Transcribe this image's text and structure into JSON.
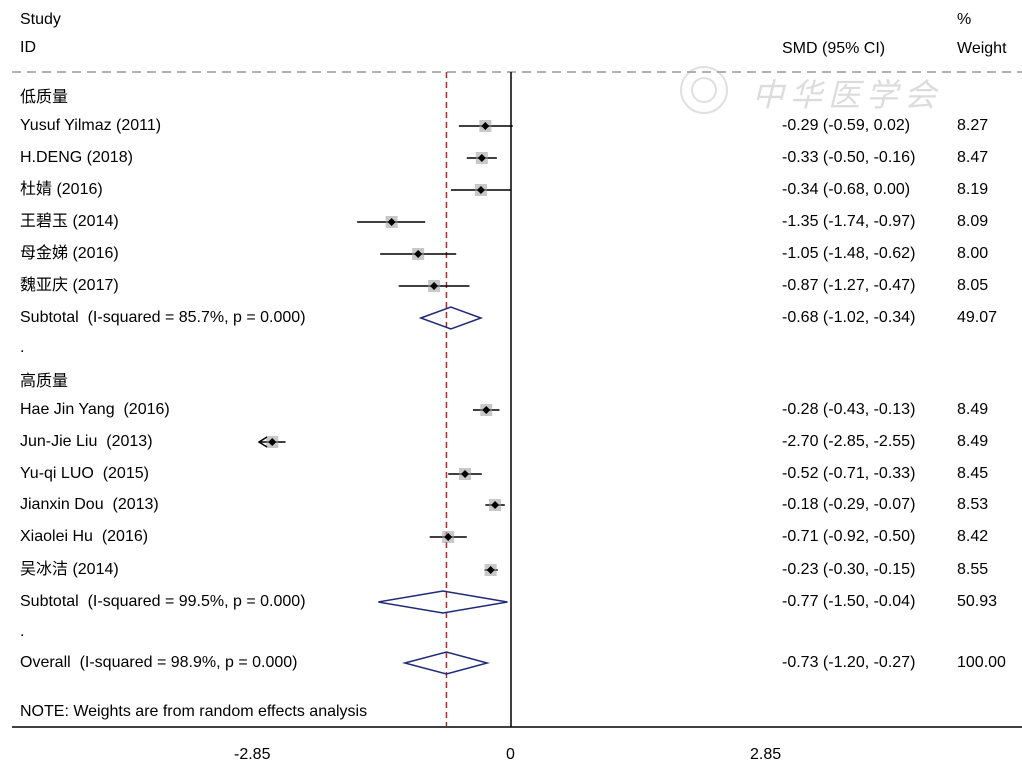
{
  "header": {
    "study_line1": "Study",
    "study_line2": "ID",
    "smd_header": "SMD (95% CI)",
    "pct": "%",
    "weight": "Weight"
  },
  "watermark": {
    "text": "中华医学会"
  },
  "chart_data": {
    "type": "forest",
    "effect_measure": "SMD",
    "xlim": [
      -2.85,
      2.85
    ],
    "x_ticks": [
      "-2.85",
      "0",
      "2.85"
    ],
    "null_line": 0,
    "overall_line": -0.73,
    "rows": [
      {
        "kind": "group",
        "label": "低质量"
      },
      {
        "kind": "study",
        "label": "Yusuf Yilmaz (2011)",
        "est": -0.29,
        "lo": -0.59,
        "hi": 0.02,
        "ci_text": "-0.29 (-0.59, 0.02)",
        "weight": "8.27"
      },
      {
        "kind": "study",
        "label": "H.DENG (2018)",
        "est": -0.33,
        "lo": -0.5,
        "hi": -0.16,
        "ci_text": "-0.33 (-0.50, -0.16)",
        "weight": "8.47"
      },
      {
        "kind": "study",
        "label": "杜婧 (2016)",
        "est": -0.34,
        "lo": -0.68,
        "hi": 0.0,
        "ci_text": "-0.34 (-0.68, 0.00)",
        "weight": "8.19"
      },
      {
        "kind": "study",
        "label": "王碧玉 (2014)",
        "est": -1.35,
        "lo": -1.74,
        "hi": -0.97,
        "ci_text": "-1.35 (-1.74, -0.97)",
        "weight": "8.09"
      },
      {
        "kind": "study",
        "label": "母金娣 (2016)",
        "est": -1.05,
        "lo": -1.48,
        "hi": -0.62,
        "ci_text": "-1.05 (-1.48, -0.62)",
        "weight": "8.00"
      },
      {
        "kind": "study",
        "label": "魏亚庆 (2017)",
        "est": -0.87,
        "lo": -1.27,
        "hi": -0.47,
        "ci_text": "-0.87 (-1.27, -0.47)",
        "weight": "8.05"
      },
      {
        "kind": "subtotal",
        "label": "Subtotal  (I-squared = 85.7%, p = 0.000)",
        "est": -0.68,
        "lo": -1.02,
        "hi": -0.34,
        "ci_text": "-0.68 (-1.02, -0.34)",
        "weight": "49.07"
      },
      {
        "kind": "spacer",
        "label": "."
      },
      {
        "kind": "group",
        "label": "高质量"
      },
      {
        "kind": "study",
        "label": "Hae Jin Yang  (2016)",
        "est": -0.28,
        "lo": -0.43,
        "hi": -0.13,
        "ci_text": "-0.28 (-0.43, -0.13)",
        "weight": "8.49"
      },
      {
        "kind": "study",
        "label": "Jun-Jie Liu  (2013)",
        "est": -2.7,
        "lo": -2.85,
        "hi": -2.55,
        "ci_text": "-2.70 (-2.85, -2.55)",
        "weight": "8.49",
        "arrow_left": true
      },
      {
        "kind": "study",
        "label": "Yu-qi LUO  (2015)",
        "est": -0.52,
        "lo": -0.71,
        "hi": -0.33,
        "ci_text": "-0.52 (-0.71, -0.33)",
        "weight": "8.45"
      },
      {
        "kind": "study",
        "label": "Jianxin Dou  (2013)",
        "est": -0.18,
        "lo": -0.29,
        "hi": -0.07,
        "ci_text": "-0.18 (-0.29, -0.07)",
        "weight": "8.53"
      },
      {
        "kind": "study",
        "label": "Xiaolei Hu  (2016)",
        "est": -0.71,
        "lo": -0.92,
        "hi": -0.5,
        "ci_text": "-0.71 (-0.92, -0.50)",
        "weight": "8.42"
      },
      {
        "kind": "study",
        "label": "吴冰洁 (2014)",
        "est": -0.23,
        "lo": -0.3,
        "hi": -0.15,
        "ci_text": "-0.23 (-0.30, -0.15)",
        "weight": "8.55"
      },
      {
        "kind": "subtotal",
        "label": "Subtotal  (I-squared = 99.5%, p = 0.000)",
        "est": -0.77,
        "lo": -1.5,
        "hi": -0.04,
        "ci_text": "-0.77 (-1.50, -0.04)",
        "weight": "50.93"
      },
      {
        "kind": "spacer",
        "label": "."
      },
      {
        "kind": "overall",
        "label": "Overall  (I-squared = 98.9%, p = 0.000)",
        "est": -0.73,
        "lo": -1.2,
        "hi": -0.27,
        "ci_text": "-0.73 (-1.20, -0.27)",
        "weight": "100.00"
      }
    ],
    "note": "NOTE: Weights are from random effects analysis",
    "colors": {
      "marker": "#000000",
      "weight_box": "#9a9a9a",
      "diamond": "#1f2a7a",
      "overall_line": "#a52a2a",
      "rule": "#999999"
    }
  }
}
